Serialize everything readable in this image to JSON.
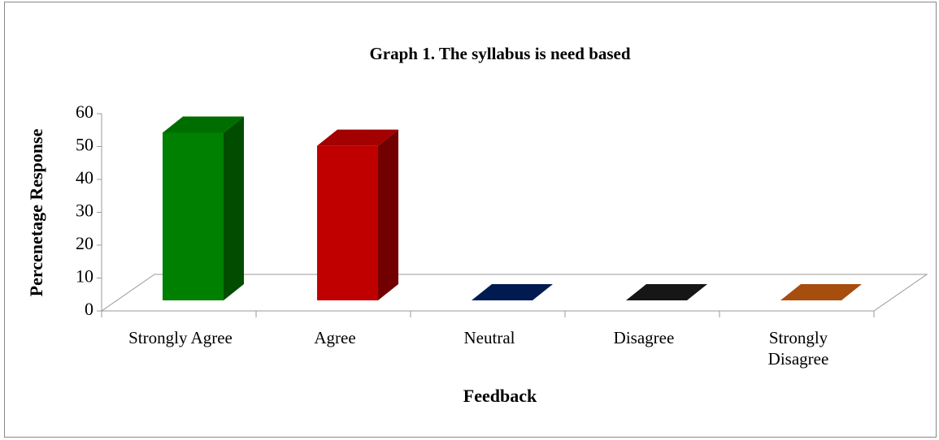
{
  "chart_data": {
    "type": "bar3d",
    "title": "Graph 1. The syllabus is need based",
    "x_label": "Feedback",
    "y_label": "Percenetage Response",
    "categories": [
      "Strongly Agree",
      "Agree",
      "Neutral",
      "Disagree",
      "Strongly Disagree"
    ],
    "values": [
      51,
      47,
      0,
      0,
      0
    ],
    "colors": [
      "#008000",
      "#c00000",
      "#002060",
      "#1a1a1a",
      "#c55a11"
    ],
    "ylim": [
      0,
      60
    ],
    "yticks": [
      0,
      10,
      20,
      30,
      40,
      50,
      60
    ],
    "grid": false
  }
}
